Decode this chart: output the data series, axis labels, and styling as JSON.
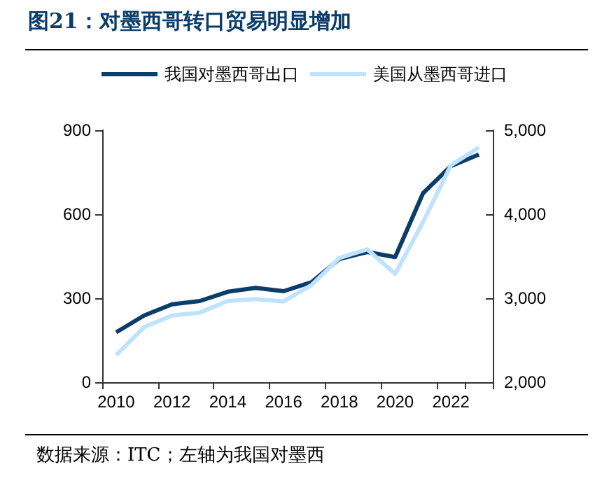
{
  "chart_data": {
    "type": "line",
    "title": "图21：对墨西哥转口贸易明显增加",
    "annotations": [
      "数据来源：ITC；左轴为我国对墨西"
    ],
    "categories": [
      "2010",
      null,
      "2012",
      null,
      "2014",
      null,
      "2016",
      null,
      "2018",
      null,
      "2020",
      null,
      "2022",
      null
    ],
    "series": [
      {
        "name": "我国对墨西哥出口",
        "color": "#0b3d6b",
        "values": [
          178,
          238,
          278,
          290,
          323,
          337,
          325,
          357,
          440,
          465,
          447,
          675,
          772,
          813
        ]
      },
      {
        "name": "美国从墨西哥进口",
        "color": "#bfe3ff",
        "axis": "y2",
        "values": [
          2322,
          2656,
          2794,
          2828,
          2967,
          2989,
          2961,
          3156,
          3478,
          3583,
          3289,
          3906,
          4583,
          4794
        ]
      }
    ],
    "ylim": [
      0,
      900
    ],
    "yticks": [
      0,
      300,
      600,
      900
    ],
    "y2lim": [
      2000,
      5000
    ],
    "y2ticks": [
      {
        "value": 2000,
        "label": "2,000"
      },
      {
        "value": 3000,
        "label": "3,000"
      },
      {
        "value": 4000,
        "label": "4,000"
      },
      {
        "value": 5000,
        "label": "5,000"
      }
    ],
    "grid": false,
    "legend": "top",
    "marker": "none",
    "line_style": "solid"
  }
}
